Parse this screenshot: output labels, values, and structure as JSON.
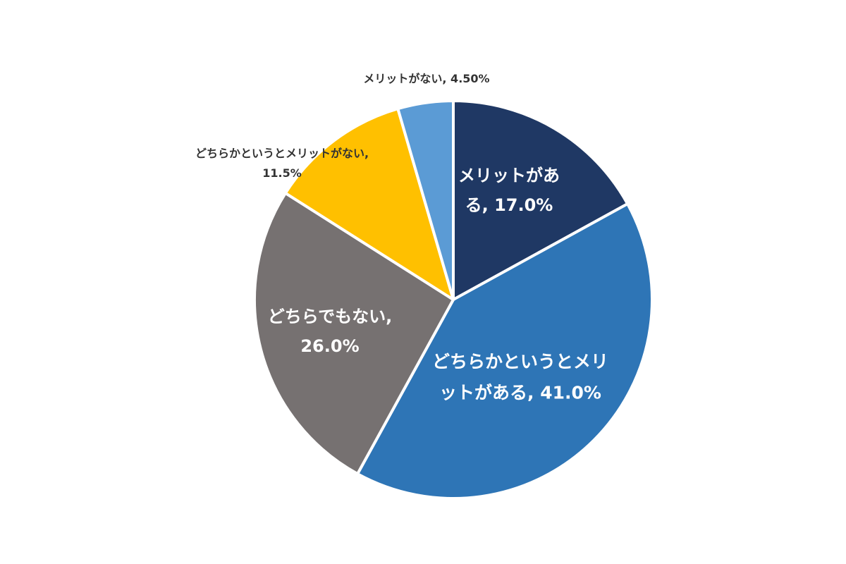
{
  "chart_data": {
    "type": "pie",
    "values": [
      17.0,
      41.0,
      26.0,
      11.5,
      4.5
    ],
    "value_labels": [
      "メリットがある, 17.0%",
      "どちらかというとメリットがある, 41.0%",
      "どちらでもない, 26.0%",
      "どちらかというとメリットがない, 11.5%",
      "メリットがない, 4.50%"
    ],
    "colors": [
      "#1f3864",
      "#2e75b6",
      "#767171",
      "#ffc000",
      "#5b9bd5"
    ]
  }
}
